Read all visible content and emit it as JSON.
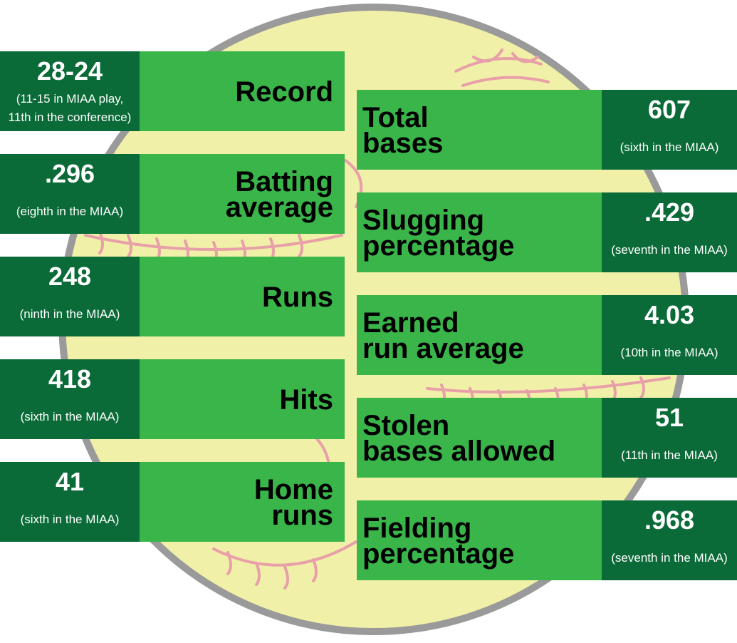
{
  "left": [
    {
      "value": "28-24",
      "note_lines": [
        "(11-15 in MIAA play,",
        "11th in the conference)"
      ],
      "label_lines": [
        "Record"
      ]
    },
    {
      "value": ".296",
      "note_lines": [
        "(eighth in the MIAA)"
      ],
      "label_lines": [
        "Batting",
        "average"
      ]
    },
    {
      "value": "248",
      "note_lines": [
        "(ninth in the MIAA)"
      ],
      "label_lines": [
        "Runs"
      ]
    },
    {
      "value": "418",
      "note_lines": [
        "(sixth in the MIAA)"
      ],
      "label_lines": [
        "Hits"
      ]
    },
    {
      "value": "41",
      "note_lines": [
        "(sixth in the MIAA)"
      ],
      "label_lines": [
        "Home",
        "runs"
      ]
    }
  ],
  "right": [
    {
      "value": "607",
      "note_lines": [
        "(sixth in the MIAA)"
      ],
      "label_lines": [
        "Total",
        "bases"
      ]
    },
    {
      "value": ".429",
      "note_lines": [
        "(seventh in the MIAA)"
      ],
      "label_lines": [
        "Slugging",
        "percentage"
      ]
    },
    {
      "value": "4.03",
      "note_lines": [
        "(10th in the MIAA)"
      ],
      "label_lines": [
        "Earned",
        "run average"
      ]
    },
    {
      "value": "51",
      "note_lines": [
        "(11th in the MIAA)"
      ],
      "label_lines": [
        "Stolen",
        "bases allowed"
      ]
    },
    {
      "value": ".968",
      "note_lines": [
        "(seventh in the MIAA)"
      ],
      "label_lines": [
        "Fielding",
        "percentage"
      ]
    }
  ]
}
